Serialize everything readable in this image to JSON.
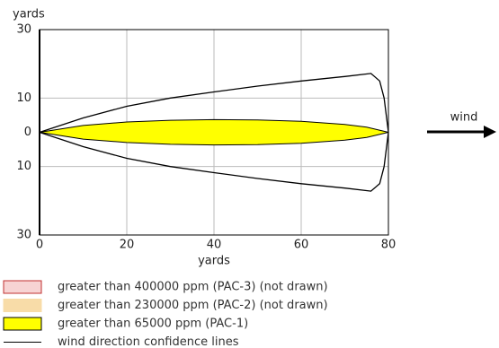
{
  "chart_data": {
    "type": "threat-zone",
    "ylabel": "yards",
    "xlabel": "yards",
    "xlim": [
      0,
      80
    ],
    "xticks": [
      0,
      20,
      40,
      60,
      80
    ],
    "ylim": [
      -30,
      30
    ],
    "yticks": [
      30,
      10,
      0,
      {
        "value": -10,
        "label": "10"
      },
      {
        "value": -30,
        "label": "30"
      }
    ],
    "grid": true,
    "wind_label": "wind",
    "shapes": [
      {
        "name": "greater than 65000 ppm (PAC-1)",
        "color": "#ffff00",
        "x": [
          0,
          10,
          20,
          30,
          40,
          50,
          60,
          70,
          75,
          80
        ],
        "upper": [
          0,
          2,
          3,
          3.5,
          3.7,
          3.6,
          3.2,
          2.3,
          1.5,
          0
        ],
        "lower": [
          0,
          -2,
          -3,
          -3.5,
          -3.7,
          -3.6,
          -3.2,
          -2.3,
          -1.5,
          0
        ]
      },
      {
        "name": "wind direction confidence lines",
        "color": "#000000",
        "x": [
          0,
          10,
          20,
          30,
          40,
          50,
          60,
          70,
          76,
          78,
          79,
          80
        ],
        "upper": [
          0,
          4.2,
          7.6,
          10,
          11.8,
          13.5,
          15,
          16.3,
          17.2,
          15,
          10,
          0
        ],
        "lower": [
          0,
          -4.2,
          -7.6,
          -10,
          -11.8,
          -13.5,
          -15,
          -16.3,
          -17.2,
          -15,
          -10,
          0
        ]
      }
    ],
    "legend": [
      {
        "label": "greater than 400000 ppm (PAC-3) (not drawn)",
        "fill": "#f7d4d4",
        "stroke": "#c03030"
      },
      {
        "label": "greater than 230000 ppm (PAC-2) (not drawn)",
        "fill": "#f8dca8",
        "stroke": "#f8dca8"
      },
      {
        "label": "greater than 65000 ppm (PAC-1)",
        "fill": "#ffff00",
        "stroke": "#000000"
      },
      {
        "label": "wind direction confidence lines",
        "fill": "none",
        "stroke": "#000000"
      }
    ]
  }
}
